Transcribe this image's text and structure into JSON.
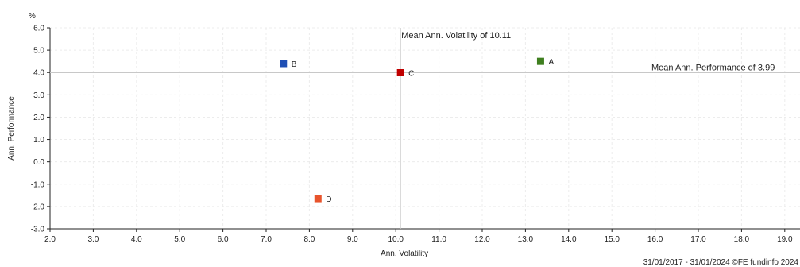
{
  "chart_data": {
    "type": "scatter",
    "xlabel": "Ann. Volatility",
    "ylabel": "Ann. Performance",
    "y_unit": "%",
    "xlim": [
      2.0,
      19.6
    ],
    "ylim": [
      -3.0,
      6.0
    ],
    "x_ticks": [
      "2.0",
      "3.0",
      "4.0",
      "5.0",
      "6.0",
      "7.0",
      "8.0",
      "9.0",
      "10.0",
      "11.0",
      "12.0",
      "13.0",
      "14.0",
      "15.0",
      "16.0",
      "17.0",
      "18.0",
      "19.0"
    ],
    "y_ticks": [
      "6.0",
      "5.0",
      "4.0",
      "3.0",
      "2.0",
      "1.0",
      "0.0",
      "-1.0",
      "-2.0",
      "-3.0"
    ],
    "grid": true,
    "points": [
      {
        "label": "A",
        "x": 13.35,
        "y": 4.5,
        "color": "#3f7f1f"
      },
      {
        "label": "B",
        "x": 7.4,
        "y": 4.4,
        "color": "#1f4fb4"
      },
      {
        "label": "C",
        "x": 10.11,
        "y": 3.99,
        "color": "#c00000"
      },
      {
        "label": "D",
        "x": 8.2,
        "y": -1.65,
        "color": "#e8542c"
      }
    ],
    "mean_x": {
      "value": 10.11,
      "label": "Mean Ann. Volatility of 10.11"
    },
    "mean_y": {
      "value": 3.99,
      "label": "Mean Ann. Performance of 3.99"
    },
    "footer": "31/01/2017 - 31/01/2024 ©FE fundinfo 2024"
  }
}
